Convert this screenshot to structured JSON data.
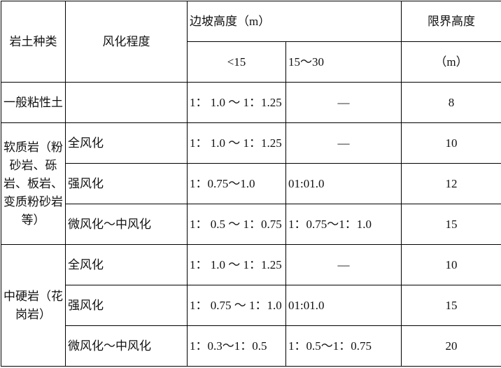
{
  "headers": {
    "soil_type": "岩土种类",
    "weathering": "风化程度",
    "slope_height": "边坡高度（m）",
    "lt15": "<15",
    "h15_30": "15～30",
    "limit_height": "限界高度",
    "limit_unit": "（m）"
  },
  "groups": [
    {
      "name": "一般粘性土",
      "rows": [
        {
          "weathering": "",
          "lt15": "1： 1.0 ～ 1：1.25",
          "h15_30": "—",
          "limit": "8"
        }
      ]
    },
    {
      "name": "软质岩（粉砂岩、砾岩、板岩、变质粉砂岩等）",
      "rows": [
        {
          "weathering": "全风化",
          "lt15": "1： 1.0 ～ 1：1.25",
          "h15_30": "—",
          "limit": "10"
        },
        {
          "weathering": "强风化",
          "lt15": "1：0.75～1.0",
          "h15_30": "01:01.0",
          "limit": "12"
        },
        {
          "weathering": "微风化～中风化",
          "lt15": "1： 0.5 ～ 1：0.75",
          "h15_30": "1：0.75～1：1.0",
          "limit": "15"
        }
      ]
    },
    {
      "name": "中硬岩（花岗岩）",
      "rows": [
        {
          "weathering": "全风化",
          "lt15": "1： 1.0 ～ 1：1.25",
          "h15_30": "—",
          "limit": "10"
        },
        {
          "weathering": "强风化",
          "lt15": "1： 0.75 ～ 1：1.0",
          "h15_30": "01:01.0",
          "limit": "15"
        },
        {
          "weathering": "微风化～中风化",
          "lt15": "1：0.3～1：0.5",
          "h15_30": "1：0.5～1：0.75",
          "limit": "20"
        }
      ]
    }
  ]
}
